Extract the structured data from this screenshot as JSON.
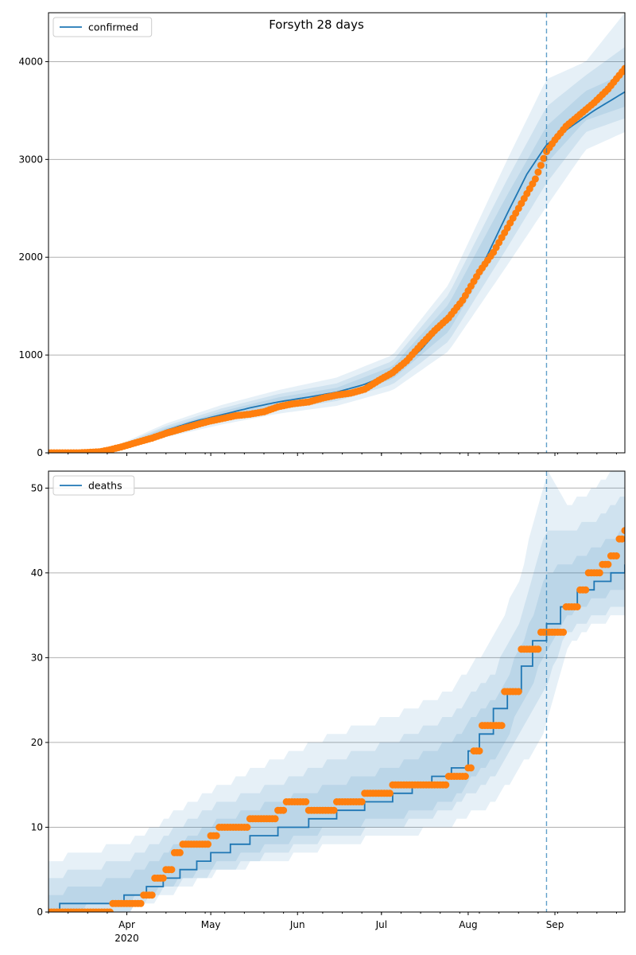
{
  "title": "Forsyth 28 days",
  "colors": {
    "model": "#1f77b4",
    "observed": "#ff7f0e",
    "band": "#1f77b4",
    "grid": "#b0b0b0"
  },
  "x_axis": {
    "month_labels": [
      "Apr",
      "May",
      "Jun",
      "Jul",
      "Aug",
      "Sep"
    ],
    "year_label": "2020"
  },
  "chart_data": [
    {
      "type": "line",
      "name": "confirmed",
      "legend": "confirmed",
      "legend_position": "top-left",
      "grid": true,
      "xlim": [
        "2020-03-04",
        "2020-09-26"
      ],
      "ylim": [
        0,
        4500
      ],
      "yticks": [
        0,
        1000,
        2000,
        3000,
        4000
      ],
      "forecast_start": "2020-08-29",
      "model": {
        "x": [
          "2020-03-04",
          "2020-03-15",
          "2020-03-25",
          "2020-04-05",
          "2020-04-15",
          "2020-04-25",
          "2020-05-05",
          "2020-05-15",
          "2020-05-25",
          "2020-06-05",
          "2020-06-15",
          "2020-06-25",
          "2020-07-05",
          "2020-07-15",
          "2020-07-25",
          "2020-08-05",
          "2020-08-15",
          "2020-08-22",
          "2020-08-29",
          "2020-09-05",
          "2020-09-15",
          "2020-09-26"
        ],
        "y": [
          0,
          0,
          20,
          110,
          230,
          320,
          390,
          460,
          520,
          570,
          620,
          700,
          820,
          1050,
          1380,
          1850,
          2450,
          2850,
          3150,
          3300,
          3500,
          3690
        ]
      },
      "bands": [
        {
          "x": [
            "2020-03-04",
            "2020-03-25",
            "2020-04-15",
            "2020-05-05",
            "2020-05-25",
            "2020-06-15",
            "2020-07-05",
            "2020-07-25",
            "2020-08-15",
            "2020-08-29",
            "2020-09-12",
            "2020-09-26"
          ],
          "lower": [
            0,
            10,
            160,
            290,
            400,
            480,
            640,
            1040,
            1920,
            2520,
            3100,
            3280
          ],
          "upper": [
            0,
            30,
            300,
            490,
            640,
            770,
            1000,
            1720,
            3000,
            3820,
            4000,
            4500
          ]
        },
        {
          "x": [
            "2020-03-04",
            "2020-03-25",
            "2020-04-15",
            "2020-05-05",
            "2020-05-25",
            "2020-06-15",
            "2020-07-05",
            "2020-07-25",
            "2020-08-15",
            "2020-08-29",
            "2020-09-12",
            "2020-09-26"
          ],
          "lower": [
            0,
            14,
            185,
            325,
            440,
            530,
            700,
            1140,
            2100,
            2760,
            3280,
            3420
          ],
          "upper": [
            0,
            26,
            275,
            455,
            600,
            710,
            940,
            1620,
            2800,
            3540,
            3860,
            4150
          ]
        },
        {
          "x": [
            "2020-03-04",
            "2020-03-25",
            "2020-04-15",
            "2020-05-05",
            "2020-05-25",
            "2020-06-15",
            "2020-07-05",
            "2020-07-25",
            "2020-08-15",
            "2020-08-29",
            "2020-09-12",
            "2020-09-26"
          ],
          "lower": [
            0,
            17,
            205,
            355,
            475,
            575,
            755,
            1240,
            2260,
            2960,
            3400,
            3540
          ],
          "upper": [
            0,
            23,
            255,
            425,
            565,
            665,
            885,
            1520,
            2640,
            3340,
            3700,
            3880
          ]
        }
      ],
      "observed": {
        "x": [
          "2020-03-04",
          "2020-03-15",
          "2020-03-22",
          "2020-03-25",
          "2020-03-30",
          "2020-04-05",
          "2020-04-10",
          "2020-04-15",
          "2020-04-20",
          "2020-04-25",
          "2020-04-30",
          "2020-05-05",
          "2020-05-10",
          "2020-05-15",
          "2020-05-20",
          "2020-05-25",
          "2020-05-30",
          "2020-06-05",
          "2020-06-10",
          "2020-06-15",
          "2020-06-20",
          "2020-06-25",
          "2020-06-30",
          "2020-07-05",
          "2020-07-10",
          "2020-07-15",
          "2020-07-20",
          "2020-07-25",
          "2020-07-30",
          "2020-08-05",
          "2020-08-10",
          "2020-08-15",
          "2020-08-20",
          "2020-08-25",
          "2020-08-29",
          "2020-09-01",
          "2020-09-05",
          "2020-09-10",
          "2020-09-15",
          "2020-09-20",
          "2020-09-26"
        ],
        "y": [
          0,
          0,
          10,
          25,
          60,
          110,
          150,
          200,
          240,
          280,
          320,
          350,
          380,
          395,
          420,
          470,
          500,
          520,
          560,
          590,
          610,
          650,
          740,
          820,
          940,
          1100,
          1250,
          1380,
          1560,
          1850,
          2050,
          2300,
          2550,
          2800,
          3080,
          3200,
          3340,
          3460,
          3580,
          3720,
          3930
        ]
      }
    },
    {
      "type": "line",
      "name": "deaths",
      "legend": "deaths",
      "legend_position": "top-left",
      "grid": true,
      "xlim": [
        "2020-03-04",
        "2020-09-26"
      ],
      "ylim": [
        0,
        52
      ],
      "yticks": [
        0,
        10,
        20,
        30,
        40,
        50
      ],
      "forecast_start": "2020-08-29",
      "model": {
        "x": [
          "2020-03-04",
          "2020-03-08",
          "2020-03-31",
          "2020-04-08",
          "2020-04-14",
          "2020-04-20",
          "2020-04-26",
          "2020-05-01",
          "2020-05-08",
          "2020-05-15",
          "2020-05-25",
          "2020-06-05",
          "2020-06-15",
          "2020-06-25",
          "2020-07-05",
          "2020-07-12",
          "2020-07-19",
          "2020-07-26",
          "2020-08-01",
          "2020-08-05",
          "2020-08-10",
          "2020-08-15",
          "2020-08-20",
          "2020-08-24",
          "2020-08-29",
          "2020-09-03",
          "2020-09-09",
          "2020-09-15",
          "2020-09-21",
          "2020-09-26"
        ],
        "y": [
          0,
          1,
          2,
          3,
          4,
          5,
          6,
          7,
          8,
          9,
          10,
          11,
          12,
          13,
          14,
          15,
          16,
          17,
          19,
          21,
          24,
          26,
          29,
          32,
          34,
          36,
          38,
          39,
          40,
          41
        ]
      },
      "bands": [
        {
          "x": [
            "2020-03-04",
            "2020-03-31",
            "2020-04-15",
            "2020-05-05",
            "2020-05-25",
            "2020-06-15",
            "2020-07-05",
            "2020-07-25",
            "2020-08-10",
            "2020-08-20",
            "2020-08-29",
            "2020-09-05",
            "2020-09-15",
            "2020-09-26"
          ],
          "lower": [
            0,
            0,
            2,
            5,
            6,
            8,
            9,
            10,
            13,
            17,
            22,
            31,
            34,
            35
          ],
          "upper": [
            6,
            8,
            11,
            15,
            18,
            21,
            23,
            26,
            32,
            40,
            52,
            48,
            50,
            53
          ]
        },
        {
          "x": [
            "2020-03-04",
            "2020-03-31",
            "2020-04-15",
            "2020-05-05",
            "2020-05-25",
            "2020-06-15",
            "2020-07-05",
            "2020-07-25",
            "2020-08-10",
            "2020-08-20",
            "2020-08-29",
            "2020-09-05",
            "2020-09-15",
            "2020-09-26"
          ],
          "lower": [
            0,
            0,
            3,
            5,
            7,
            9,
            10,
            12,
            16,
            21,
            27,
            33,
            35,
            36
          ],
          "upper": [
            4,
            6,
            9,
            13,
            15,
            18,
            20,
            23,
            28,
            35,
            45,
            45,
            46,
            49
          ]
        },
        {
          "x": [
            "2020-03-04",
            "2020-03-31",
            "2020-04-15",
            "2020-05-05",
            "2020-05-25",
            "2020-06-15",
            "2020-07-05",
            "2020-07-25",
            "2020-08-10",
            "2020-08-20",
            "2020-08-29",
            "2020-09-05",
            "2020-09-15",
            "2020-09-26"
          ],
          "lower": [
            0,
            1,
            3,
            6,
            8,
            10,
            11,
            13,
            18,
            24,
            31,
            35,
            37,
            38
          ],
          "upper": [
            2,
            4,
            7,
            11,
            13,
            15,
            17,
            20,
            25,
            31,
            40,
            41,
            43,
            45
          ]
        }
      ],
      "observed": {
        "x": [
          "2020-03-04",
          "2020-03-27",
          "2020-04-07",
          "2020-04-11",
          "2020-04-15",
          "2020-04-18",
          "2020-04-21",
          "2020-04-24",
          "2020-05-01",
          "2020-05-04",
          "2020-05-15",
          "2020-05-25",
          "2020-05-28",
          "2020-06-05",
          "2020-06-15",
          "2020-06-25",
          "2020-07-05",
          "2020-07-25",
          "2020-08-01",
          "2020-08-03",
          "2020-08-06",
          "2020-08-14",
          "2020-08-20",
          "2020-08-24",
          "2020-08-27",
          "2020-08-31",
          "2020-09-05",
          "2020-09-10",
          "2020-09-13",
          "2020-09-18",
          "2020-09-21",
          "2020-09-24",
          "2020-09-26"
        ],
        "y": [
          0,
          1,
          2,
          4,
          5,
          7,
          8,
          8,
          9,
          10,
          11,
          12,
          13,
          12,
          13,
          14,
          15,
          16,
          17,
          19,
          22,
          26,
          31,
          31,
          33,
          33,
          36,
          38,
          40,
          41,
          42,
          44,
          45
        ]
      }
    }
  ]
}
